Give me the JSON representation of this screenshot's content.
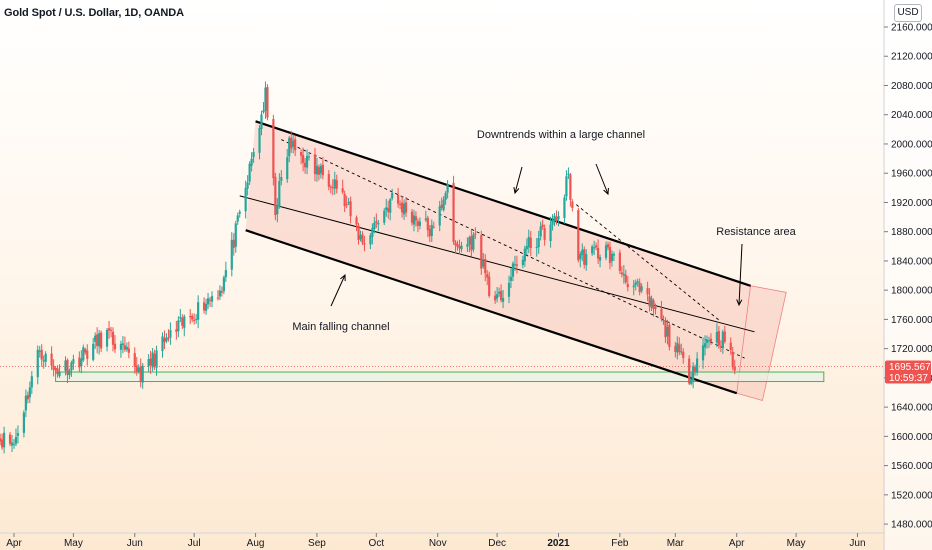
{
  "header": {
    "symbol_title": "Gold Spot / U.S. Dollar, 1D, OANDA",
    "currency": "USD"
  },
  "price_tag": {
    "last": "1695.567",
    "countdown": "10:59:37"
  },
  "colors": {
    "up": "#26a69a",
    "down": "#ef5350",
    "channel_fill": "#f4a79d",
    "support_fill": "#e8f1e4",
    "support_stroke": "#4caf50",
    "tag_bg": "#ef5350"
  },
  "annotations": {
    "downtrends": "Downtrends within a large channel",
    "resistance": "Resistance area",
    "main_channel": "Main falling channel"
  },
  "chart_data": {
    "type": "candlestick",
    "title": "Gold Spot / U.S. Dollar, 1D, OANDA",
    "y_axis": {
      "ticks": [
        1480,
        1520,
        1560,
        1600,
        1640,
        1680,
        1720,
        1760,
        1800,
        1840,
        1880,
        1920,
        1960,
        2000,
        2040,
        2080,
        2120,
        2160
      ],
      "range": [
        1470,
        2185
      ],
      "unit": "USD"
    },
    "x_axis": {
      "ticks": [
        "Apr",
        "May",
        "Jun",
        "Jul",
        "Aug",
        "Sep",
        "Oct",
        "Nov",
        "Dec",
        "2021",
        "Feb",
        "Mar",
        "Apr",
        "May",
        "Jun"
      ]
    },
    "last_price": 1695.567,
    "anchors_close": [
      [
        "2020-03-23",
        1600
      ],
      [
        "2020-04-01",
        1590
      ],
      [
        "2020-04-14",
        1720
      ],
      [
        "2020-04-21",
        1690
      ],
      [
        "2020-05-01",
        1700
      ],
      [
        "2020-05-18",
        1740
      ],
      [
        "2020-06-05",
        1685
      ],
      [
        "2020-06-15",
        1725
      ],
      [
        "2020-07-01",
        1770
      ],
      [
        "2020-07-15",
        1805
      ],
      [
        "2020-07-24",
        1900
      ],
      [
        "2020-08-06",
        2065
      ],
      [
        "2020-08-11",
        1912
      ],
      [
        "2020-08-18",
        2000
      ],
      [
        "2020-08-31",
        1965
      ],
      [
        "2020-09-10",
        1950
      ],
      [
        "2020-09-24",
        1865
      ],
      [
        "2020-10-09",
        1925
      ],
      [
        "2020-10-30",
        1878
      ],
      [
        "2020-11-06",
        1950
      ],
      [
        "2020-11-09",
        1855
      ],
      [
        "2020-11-20",
        1870
      ],
      [
        "2020-11-30",
        1777
      ],
      [
        "2020-12-15",
        1855
      ],
      [
        "2020-12-31",
        1895
      ],
      [
        "2021-01-06",
        1955
      ],
      [
        "2021-01-11",
        1845
      ],
      [
        "2021-01-25",
        1855
      ],
      [
        "2021-02-05",
        1815
      ],
      [
        "2021-02-18",
        1775
      ],
      [
        "2021-02-26",
        1735
      ],
      [
        "2021-03-08",
        1685
      ],
      [
        "2021-03-18",
        1738
      ],
      [
        "2021-03-26",
        1732
      ],
      [
        "2021-03-31",
        1690
      ]
    ],
    "overlays": [
      {
        "type": "channel",
        "upper": [
          [
            "2020-08-01",
            2031
          ],
          [
            "2021-04-08",
            1806
          ]
        ],
        "lower": [
          [
            "2020-07-27",
            1882
          ],
          [
            "2021-04-01",
            1659
          ]
        ]
      },
      {
        "type": "midline",
        "points": [
          [
            "2020-07-24",
            1929
          ],
          [
            "2021-04-10",
            1743
          ]
        ]
      },
      {
        "type": "dashed-trend",
        "points": [
          [
            "2020-08-14",
            2006
          ],
          [
            "2021-04-05",
            1707
          ]
        ]
      },
      {
        "type": "dashed-trend",
        "points": [
          [
            "2021-01-10",
            1917
          ],
          [
            "2021-03-24",
            1757
          ]
        ]
      },
      {
        "type": "support-zone",
        "from": "2020-04-22",
        "to": "2021-05-15",
        "y": [
          1675,
          1688
        ]
      },
      {
        "type": "arrow",
        "label": "downtrends"
      },
      {
        "type": "arrow",
        "label": "resistance"
      },
      {
        "type": "arrow",
        "label": "main_channel"
      }
    ]
  }
}
